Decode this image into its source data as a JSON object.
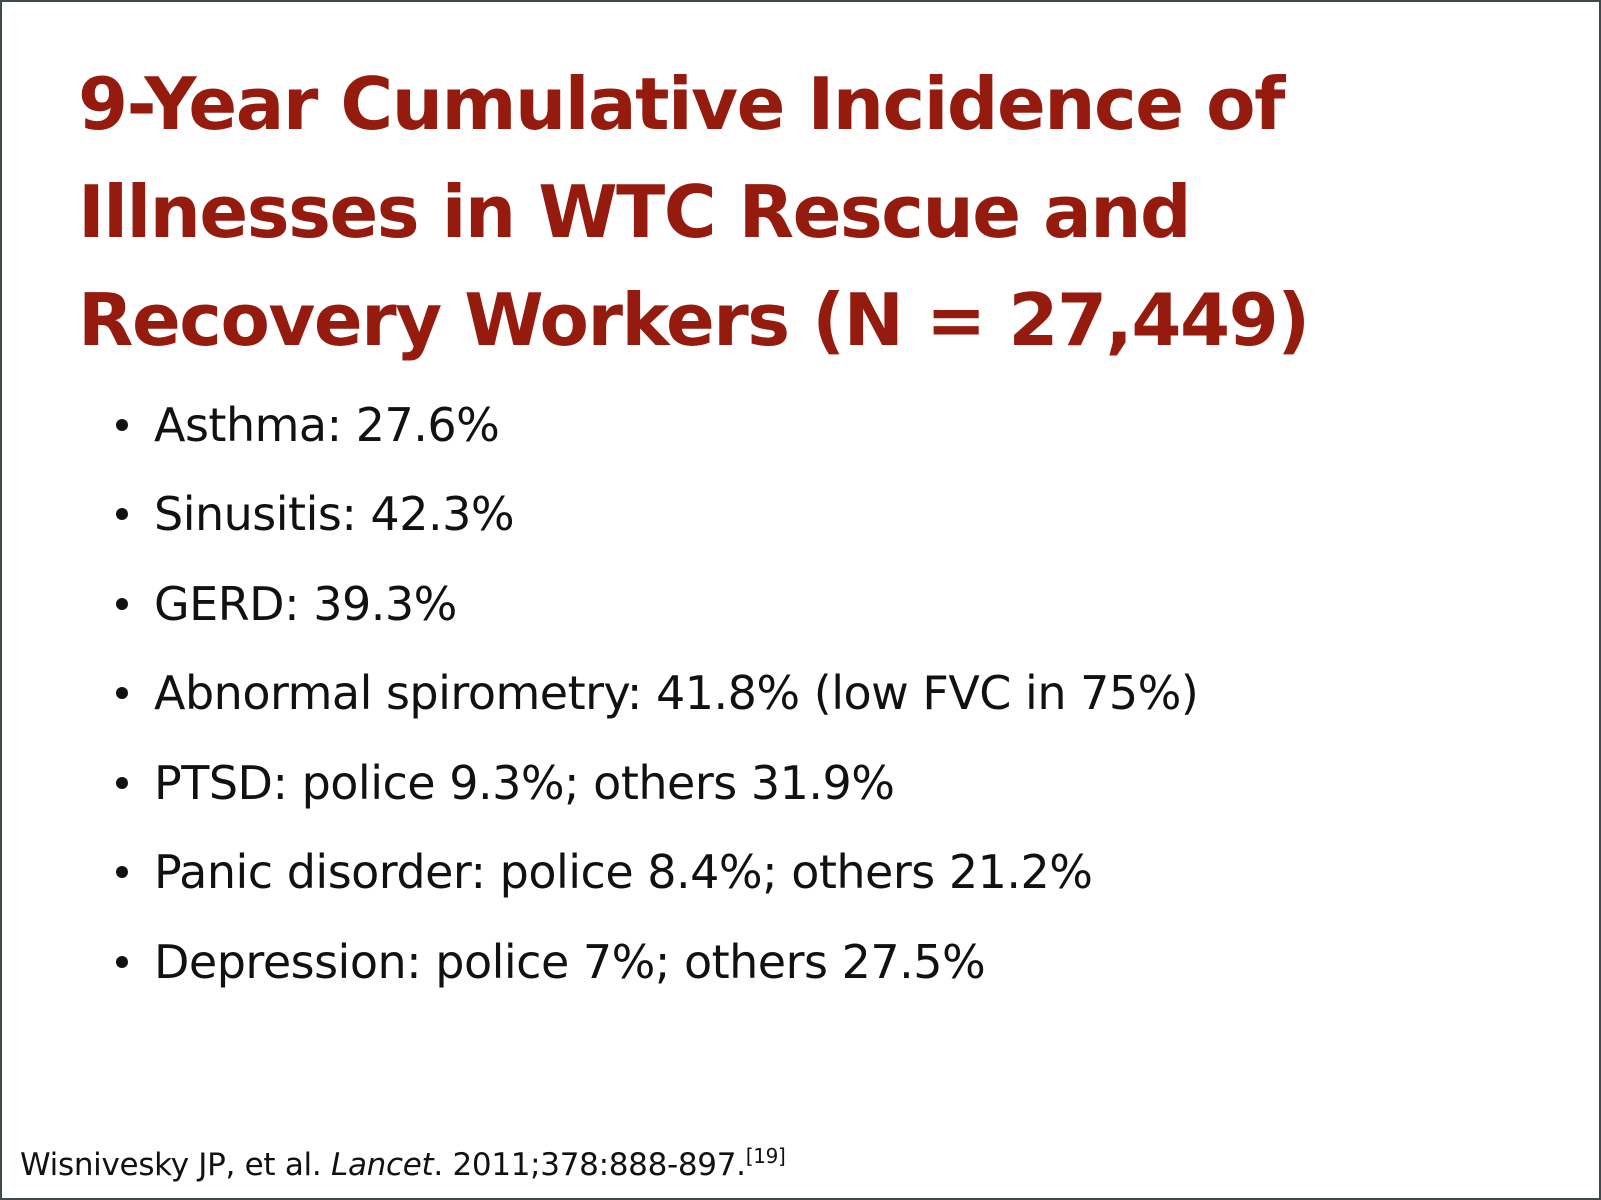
{
  "slide": {
    "title_lines": [
      "9-Year Cumulative Incidence of",
      "Illnesses in WTC Rescue and",
      "Recovery Workers (N = 27,449)"
    ],
    "bullets": [
      "Asthma: 27.6%",
      "Sinusitis: 42.3%",
      "GERD: 39.3%",
      "Abnormal spirometry: 41.8% (low FVC in 75%)",
      "PTSD: police 9.3%; others 31.9%",
      "Panic disorder: police 8.4%; others 21.2%",
      "Depression: police 7%; others 27.5%"
    ],
    "citation": {
      "authors": "Wisnivesky JP, et al. ",
      "journal": "Lancet",
      "details": ". 2011;378:888-897.",
      "reference": "[19]"
    },
    "colors": {
      "title": "#951b0e",
      "body_text": "#111111",
      "border": "#3f4a4e",
      "background": "#ffffff"
    }
  }
}
